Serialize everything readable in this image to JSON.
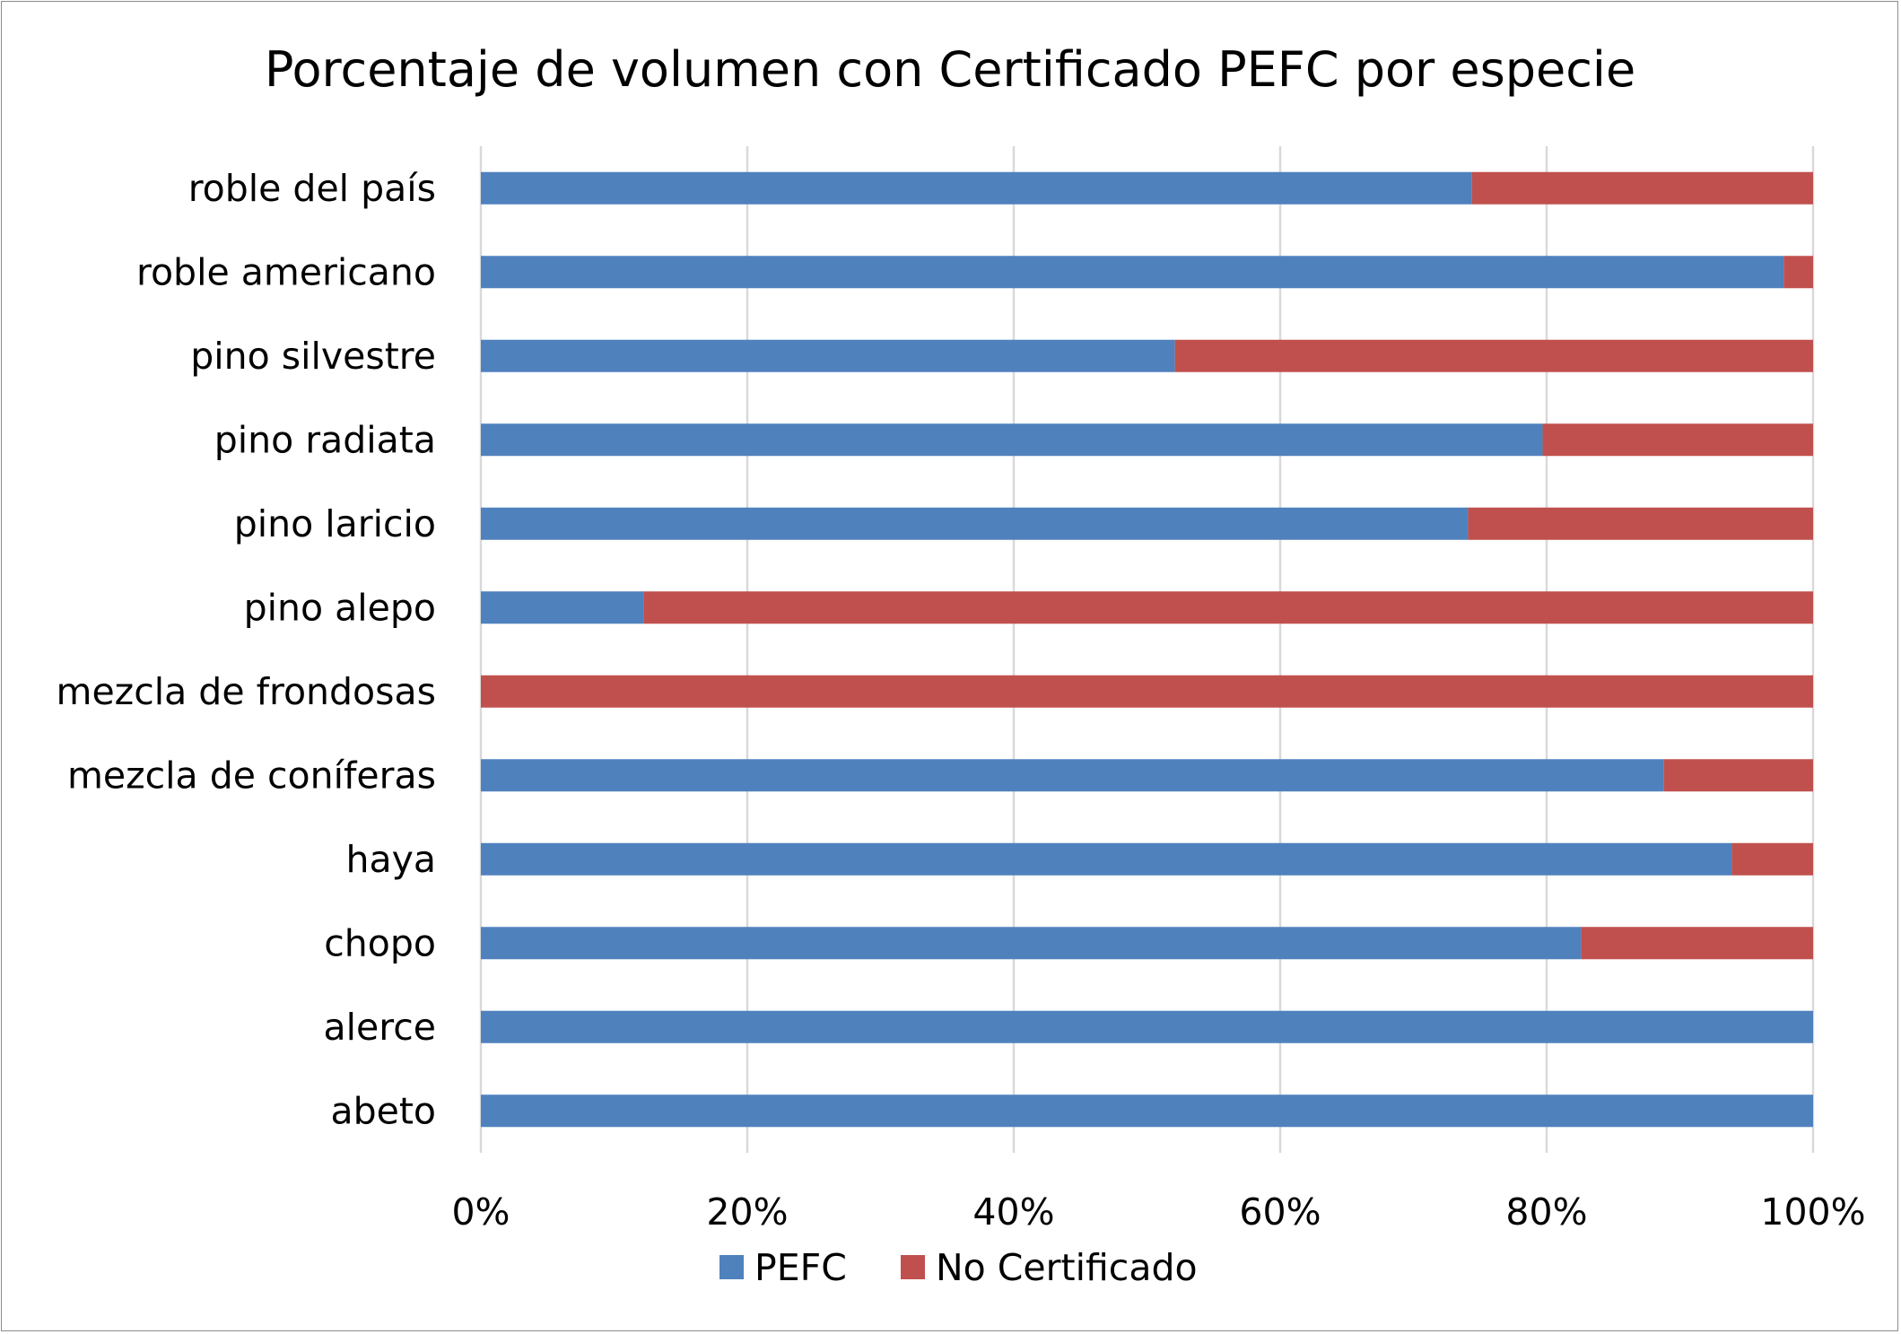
{
  "chart_data": {
    "type": "bar",
    "orientation": "horizontal",
    "stacked": "percent",
    "title": "Porcentaje de volumen con Certificado PEFC por especie",
    "categories": [
      "roble del país",
      "roble americano",
      "pino silvestre",
      "pino radiata",
      "pino laricio",
      "pino alepo",
      "mezcla de frondosas",
      "mezcla de coníferas",
      "haya",
      "chopo",
      "alerce",
      "abeto"
    ],
    "series": [
      {
        "name": "PEFC",
        "color": "#4f81bd",
        "values": [
          74.4,
          97.8,
          52.1,
          79.7,
          74.1,
          12.2,
          0,
          88.8,
          93.9,
          82.6,
          100,
          100
        ]
      },
      {
        "name": "No Certificado",
        "color": "#c0504d",
        "values": [
          25.6,
          2.2,
          47.9,
          20.3,
          25.9,
          87.8,
          100,
          11.2,
          6.1,
          17.4,
          0,
          0
        ]
      }
    ],
    "xlim": [
      0,
      100
    ],
    "x_ticks": [
      "0%",
      "20%",
      "40%",
      "60%",
      "80%",
      "100%"
    ],
    "grid": true,
    "legend_position": "bottom"
  }
}
